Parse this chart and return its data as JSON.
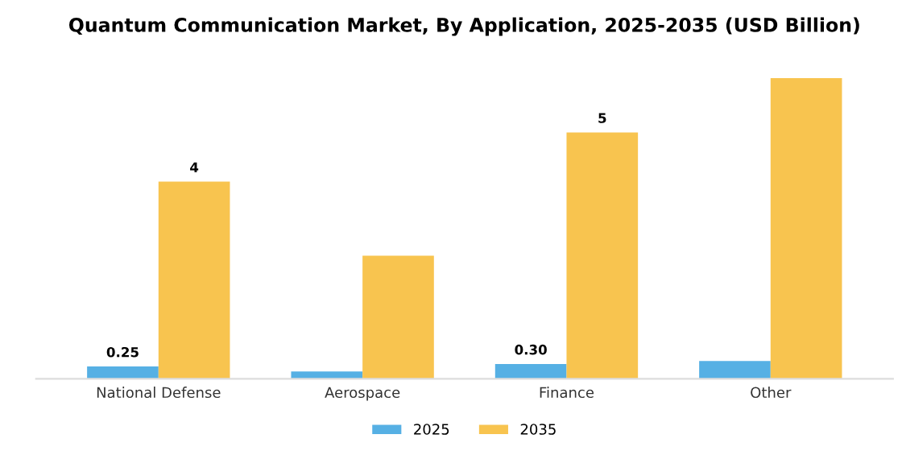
{
  "chart_data": {
    "type": "bar",
    "title": "Quantum Communication Market, By Application, 2025-2035 (USD Billion)",
    "categories": [
      "National Defense",
      "Aerospace",
      "Finance",
      "Other"
    ],
    "series": [
      {
        "name": "2025",
        "color": "#56b0e4",
        "values": [
          0.25,
          0.15,
          0.3,
          0.36
        ],
        "value_labels": [
          "0.25",
          null,
          "0.30",
          null
        ]
      },
      {
        "name": "2035",
        "color": "#f8c44f",
        "values": [
          4,
          2.5,
          5,
          6.1
        ],
        "value_labels": [
          "4",
          null,
          "5",
          null
        ]
      }
    ],
    "legend": "bottom",
    "grid": false
  }
}
